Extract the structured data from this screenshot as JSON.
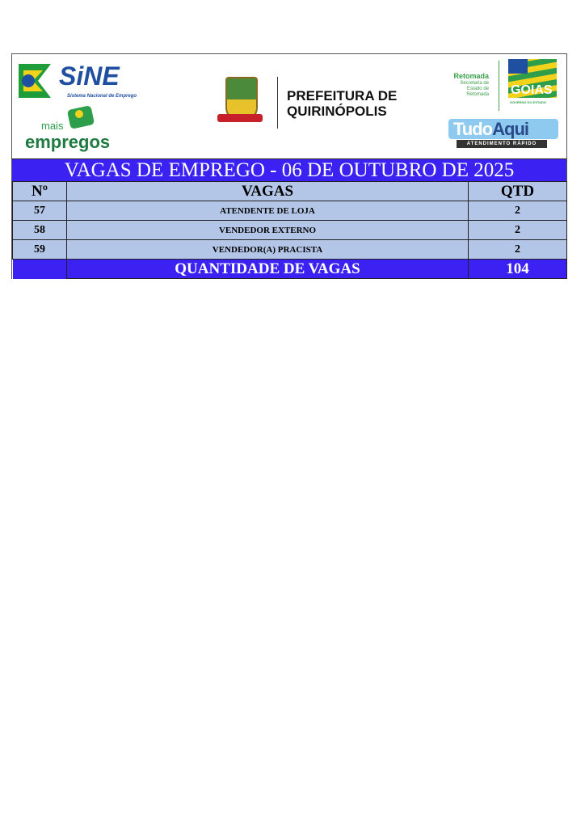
{
  "header": {
    "sine_logo": {
      "text": "SiNE",
      "subtitle": "Sistema Nacional de Emprego"
    },
    "mais_empregos_logo": {
      "line1": "mais",
      "line2": "empregos"
    },
    "prefeitura": {
      "line1": "PREFEITURA DE",
      "line2": "QUIRINÓPOLIS"
    },
    "retomada": {
      "title": "Retomada",
      "line1": "Secretaria de",
      "line2": "Estado de",
      "line3": "Retomada"
    },
    "goias_logo": {
      "text": "GOIAS",
      "subtitle": "GOVERNO DO ESTADO"
    },
    "tudoaqui_logo": {
      "text1": "Tudo",
      "text2": "Aqui",
      "subtitle": "ATENDIMENTO RÁPIDO"
    }
  },
  "title": "VAGAS DE EMPREGO - 06 DE OUTUBRO DE 2025",
  "table": {
    "columns": [
      "Nº",
      "VAGAS",
      "QTD"
    ],
    "rows": [
      {
        "n": "57",
        "vaga": "ATENDENTE DE LOJA",
        "qtd": "2"
      },
      {
        "n": "58",
        "vaga": "VENDEDOR EXTERNO",
        "qtd": "2"
      },
      {
        "n": "59",
        "vaga": "VENDEDOR(A) PRACISTA",
        "qtd": "2"
      }
    ],
    "footer": {
      "label": "QUANTIDADE DE VAGAS",
      "total": "104"
    }
  },
  "colors": {
    "title_bar": "#3b22f2",
    "row_bg": "#b4c6e7"
  }
}
